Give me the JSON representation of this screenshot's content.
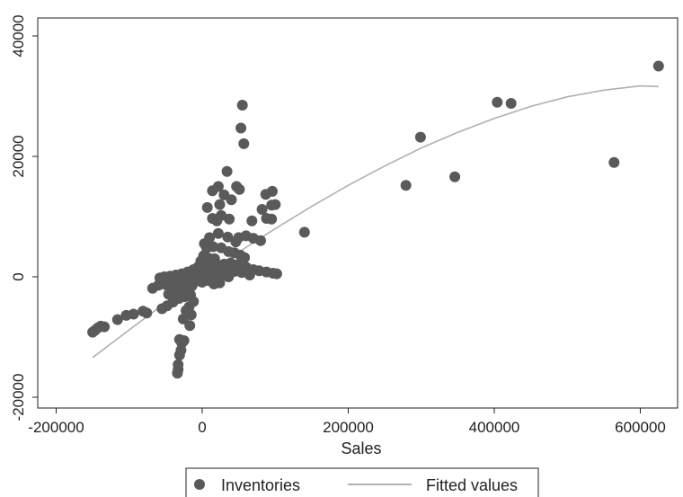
{
  "chart_data": {
    "type": "scatter",
    "title": "",
    "xlabel": "Sales",
    "ylabel": "",
    "xlim": [
      -165000,
      640000
    ],
    "ylim": [
      -20500,
      40500
    ],
    "x_ticks": [
      {
        "value": -200000,
        "label": "-200000"
      },
      {
        "value": 0,
        "label": "0"
      },
      {
        "value": 200000,
        "label": "200000"
      },
      {
        "value": 400000,
        "label": "400000"
      },
      {
        "value": 600000,
        "label": "600000"
      }
    ],
    "y_ticks": [
      {
        "value": -20000,
        "label": "-20000"
      },
      {
        "value": 0,
        "label": "0"
      },
      {
        "value": 20000,
        "label": "20000"
      },
      {
        "value": 40000,
        "label": "40000"
      }
    ],
    "grid": false,
    "legend_position": "bottom",
    "colors": {
      "scatter": "#5a5a5a",
      "fit": "#b0b0b0",
      "axis": "#222222"
    },
    "series": [
      {
        "name": "Inventories",
        "kind": "scatter",
        "points": [
          [
            625000,
            35000
          ],
          [
            404000,
            29000
          ],
          [
            423000,
            28800
          ],
          [
            564000,
            19000
          ],
          [
            299000,
            23200
          ],
          [
            279000,
            15200
          ],
          [
            346000,
            16600
          ],
          [
            140000,
            7400
          ],
          [
            55000,
            28500
          ],
          [
            53000,
            24700
          ],
          [
            57000,
            22100
          ],
          [
            34000,
            17500
          ],
          [
            47000,
            15000
          ],
          [
            51000,
            14500
          ],
          [
            22000,
            15000
          ],
          [
            14000,
            14300
          ],
          [
            30000,
            13600
          ],
          [
            40000,
            12800
          ],
          [
            24000,
            12000
          ],
          [
            7000,
            11500
          ],
          [
            96000,
            14200
          ],
          [
            87000,
            13700
          ],
          [
            95000,
            11900
          ],
          [
            100000,
            12000
          ],
          [
            82000,
            11200
          ],
          [
            88000,
            9700
          ],
          [
            95000,
            9600
          ],
          [
            68000,
            9300
          ],
          [
            14000,
            9700
          ],
          [
            20000,
            9300
          ],
          [
            26000,
            10200
          ],
          [
            37000,
            9600
          ],
          [
            60000,
            6800
          ],
          [
            70000,
            6400
          ],
          [
            80000,
            6000
          ],
          [
            50000,
            6500
          ],
          [
            46000,
            5800
          ],
          [
            35000,
            6600
          ],
          [
            22000,
            7200
          ],
          [
            10000,
            6500
          ],
          [
            3000,
            5500
          ],
          [
            6000,
            4800
          ],
          [
            15000,
            5000
          ],
          [
            26000,
            4800
          ],
          [
            36000,
            4200
          ],
          [
            44000,
            4000
          ],
          [
            52000,
            3600
          ],
          [
            58000,
            3200
          ],
          [
            2000,
            3500
          ],
          [
            9000,
            3100
          ],
          [
            17000,
            3000
          ],
          [
            -2000,
            2600
          ],
          [
            5000,
            2000
          ],
          [
            12000,
            2200
          ],
          [
            21000,
            2000
          ],
          [
            30000,
            2100
          ],
          [
            39000,
            2300
          ],
          [
            48000,
            2000
          ],
          [
            60000,
            1600
          ],
          [
            70000,
            1200
          ],
          [
            78000,
            1000
          ],
          [
            88000,
            800
          ],
          [
            97000,
            600
          ],
          [
            102000,
            500
          ],
          [
            -6000,
            1600
          ],
          [
            -12000,
            1200
          ],
          [
            -2000,
            1000
          ],
          [
            7000,
            900
          ],
          [
            16000,
            1000
          ],
          [
            25000,
            800
          ],
          [
            34000,
            700
          ],
          [
            44000,
            900
          ],
          [
            54000,
            700
          ],
          [
            65000,
            300
          ],
          [
            -20000,
            800
          ],
          [
            -28000,
            500
          ],
          [
            -36000,
            300
          ],
          [
            -44000,
            100
          ],
          [
            -52000,
            0
          ],
          [
            -58000,
            -200
          ],
          [
            -10000,
            200
          ],
          [
            -4000,
            -100
          ],
          [
            4000,
            0
          ],
          [
            12000,
            200
          ],
          [
            20000,
            -100
          ],
          [
            28000,
            200
          ],
          [
            36000,
            0
          ],
          [
            -18000,
            -400
          ],
          [
            -26000,
            -700
          ],
          [
            -34000,
            -1000
          ],
          [
            -42000,
            -1200
          ],
          [
            -50000,
            -1300
          ],
          [
            -60000,
            -1400
          ],
          [
            -68000,
            -1900
          ],
          [
            -8000,
            -700
          ],
          [
            0,
            -900
          ],
          [
            8000,
            -600
          ],
          [
            16000,
            -1200
          ],
          [
            24000,
            -1000
          ],
          [
            -14000,
            -1500
          ],
          [
            -22000,
            -1800
          ],
          [
            -30000,
            -2100
          ],
          [
            -38000,
            -2400
          ],
          [
            -46000,
            -2900
          ],
          [
            -16000,
            -3000
          ],
          [
            -24000,
            -3300
          ],
          [
            -32000,
            -3600
          ],
          [
            -40000,
            -4200
          ],
          [
            -48000,
            -4800
          ],
          [
            -55000,
            -5300
          ],
          [
            -12000,
            -4100
          ],
          [
            -18000,
            -5000
          ],
          [
            -22000,
            -5600
          ],
          [
            -26000,
            -7000
          ],
          [
            -31000,
            -10400
          ],
          [
            -28000,
            -11000
          ],
          [
            -25000,
            -10600
          ],
          [
            -29000,
            -12200
          ],
          [
            -31000,
            -13000
          ],
          [
            -33000,
            -14600
          ],
          [
            -33000,
            -15400
          ],
          [
            -34000,
            -16000
          ],
          [
            -17000,
            -8100
          ],
          [
            -15000,
            -6300
          ],
          [
            -147000,
            -8900
          ],
          [
            -150000,
            -9200
          ],
          [
            -143000,
            -8500
          ],
          [
            -139000,
            -8200
          ],
          [
            -134000,
            -8300
          ],
          [
            -116000,
            -7100
          ],
          [
            -104000,
            -6400
          ],
          [
            -94000,
            -6200
          ],
          [
            -81000,
            -5700
          ],
          [
            -76000,
            -6000
          ]
        ]
      },
      {
        "name": "Fitted values",
        "kind": "line",
        "points": [
          [
            -150000,
            -13400
          ],
          [
            -100000,
            -8800
          ],
          [
            -50000,
            -4300
          ],
          [
            0,
            0
          ],
          [
            50000,
            4100
          ],
          [
            100000,
            8000
          ],
          [
            150000,
            11700
          ],
          [
            200000,
            15200
          ],
          [
            250000,
            18400
          ],
          [
            300000,
            21400
          ],
          [
            350000,
            24000
          ],
          [
            400000,
            26300
          ],
          [
            450000,
            28300
          ],
          [
            500000,
            29900
          ],
          [
            550000,
            31000
          ],
          [
            600000,
            31700
          ],
          [
            625000,
            31600
          ]
        ]
      }
    ]
  }
}
